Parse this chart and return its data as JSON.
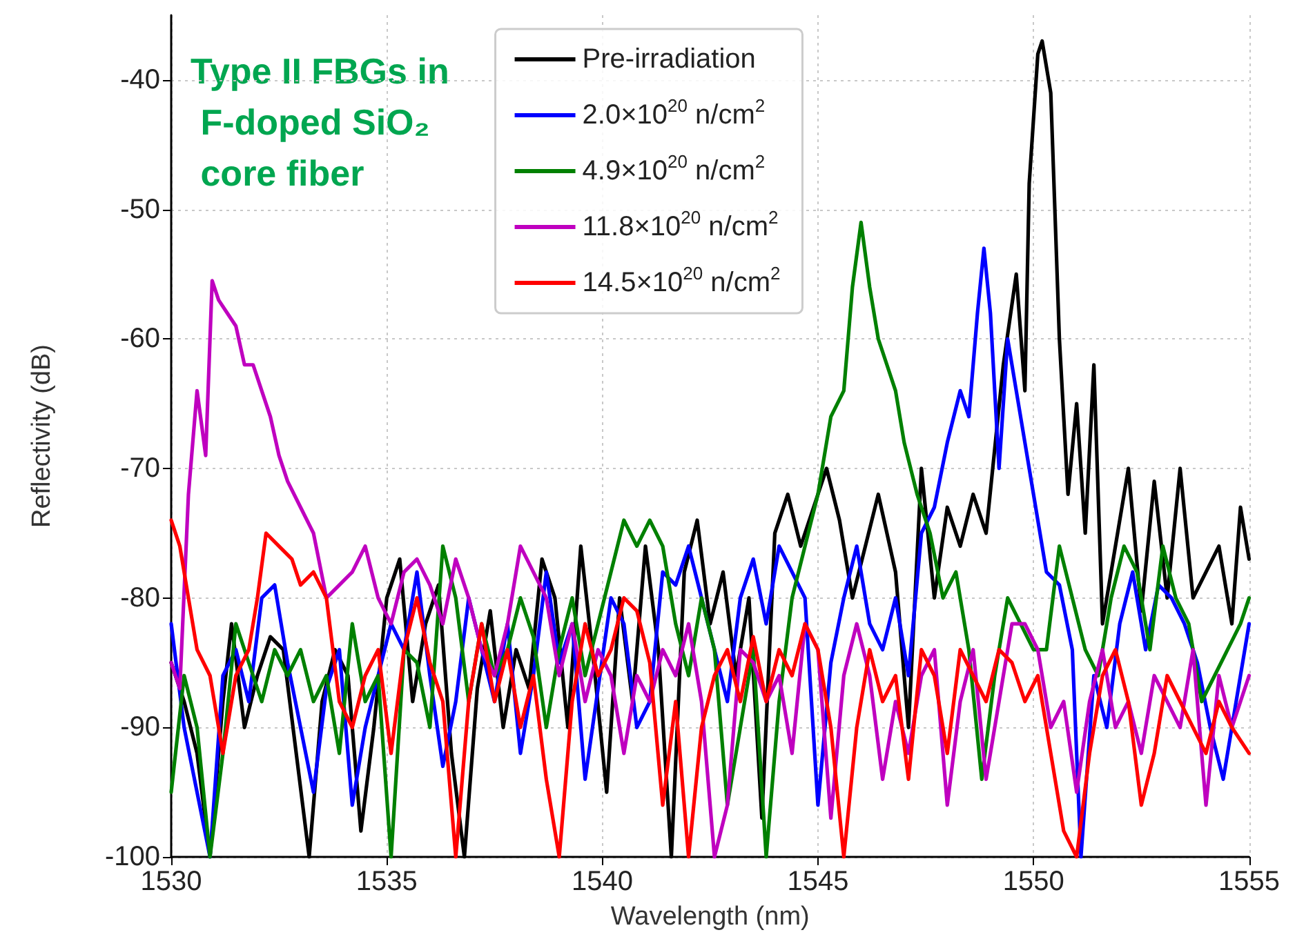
{
  "chart_data": {
    "type": "line",
    "xlabel": "Wavelength (nm)",
    "ylabel": "Reflectivity (dB)",
    "annotations": [
      "Type II FBGs in F-doped SiO₂ core fiber"
    ],
    "xlim": [
      1530,
      1555
    ],
    "xticks": [
      1530,
      1535,
      1540,
      1545,
      1550,
      1555
    ],
    "ylim": [
      -100,
      -35
    ],
    "yticks": [
      -100,
      -90,
      -80,
      -70,
      -60,
      -50,
      -40
    ],
    "grid": true,
    "legend": "top",
    "marker": "none",
    "line_style": "solid",
    "series": [
      {
        "name": "Pre-irradiation",
        "color": "#000000",
        "x": [
          1530,
          1530.3,
          1530.6,
          1530.9,
          1531.2,
          1531.4,
          1531.7,
          1532,
          1532.3,
          1532.6,
          1532.9,
          1533.2,
          1533.5,
          1533.8,
          1534.1,
          1534.4,
          1534.7,
          1535,
          1535.3,
          1535.6,
          1535.9,
          1536.2,
          1536.5,
          1536.8,
          1537.1,
          1537.4,
          1537.7,
          1538,
          1538.3,
          1538.6,
          1538.9,
          1539.2,
          1539.5,
          1539.8,
          1540.1,
          1540.4,
          1540.7,
          1541,
          1541.3,
          1541.6,
          1541.9,
          1542.2,
          1542.5,
          1542.8,
          1543.1,
          1543.4,
          1543.7,
          1544,
          1544.3,
          1544.6,
          1544.9,
          1545.2,
          1545.5,
          1545.8,
          1546.1,
          1546.4,
          1546.8,
          1547.1,
          1547.4,
          1547.7,
          1548,
          1548.3,
          1548.6,
          1548.9,
          1549.3,
          1549.6,
          1549.8,
          1549.9,
          1550.1,
          1550.2,
          1550.4,
          1550.6,
          1550.8,
          1551,
          1551.2,
          1551.4,
          1551.6,
          1551.9,
          1552.2,
          1552.5,
          1552.8,
          1553.1,
          1553.4,
          1553.7,
          1554,
          1554.3,
          1554.6,
          1554.8,
          1555
        ],
        "values": [
          -85,
          -88,
          -92,
          -100,
          -88,
          -82,
          -90,
          -86,
          -83,
          -84,
          -92,
          -100,
          -88,
          -84,
          -86,
          -98,
          -90,
          -80,
          -77,
          -88,
          -82,
          -79,
          -92,
          -100,
          -87,
          -81,
          -90,
          -84,
          -87,
          -77,
          -80,
          -90,
          -76,
          -85,
          -95,
          -80,
          -88,
          -76,
          -84,
          -100,
          -78,
          -74,
          -82,
          -78,
          -86,
          -80,
          -97,
          -75,
          -72,
          -76,
          -73,
          -70,
          -74,
          -80,
          -76,
          -72,
          -78,
          -90,
          -70,
          -80,
          -73,
          -76,
          -72,
          -75,
          -62,
          -55,
          -64,
          -48,
          -38,
          -37,
          -41,
          -60,
          -72,
          -65,
          -75,
          -62,
          -82,
          -76,
          -70,
          -81,
          -71,
          -80,
          -70,
          -80,
          -78,
          -76,
          -82,
          -73,
          -77
        ]
      },
      {
        "name": "2.0×10$^{20}$ n/cm$^{2}$",
        "color": "#0000ff",
        "x": [
          1530,
          1530.3,
          1530.6,
          1530.9,
          1531.2,
          1531.5,
          1531.8,
          1532.1,
          1532.4,
          1532.7,
          1533,
          1533.3,
          1533.6,
          1533.9,
          1534.2,
          1534.5,
          1534.8,
          1535.1,
          1535.4,
          1535.7,
          1536,
          1536.3,
          1536.6,
          1536.9,
          1537.2,
          1537.5,
          1537.8,
          1538.1,
          1538.4,
          1538.7,
          1539,
          1539.3,
          1539.6,
          1539.9,
          1540.2,
          1540.5,
          1540.8,
          1541.1,
          1541.4,
          1541.7,
          1542,
          1542.3,
          1542.6,
          1542.9,
          1543.2,
          1543.5,
          1543.8,
          1544.1,
          1544.4,
          1544.7,
          1545,
          1545.3,
          1545.6,
          1545.9,
          1546.2,
          1546.5,
          1546.8,
          1547.1,
          1547.4,
          1547.7,
          1548,
          1548.3,
          1548.5,
          1548.7,
          1548.85,
          1549,
          1549.2,
          1549.4,
          1549.6,
          1549.8,
          1550,
          1550.3,
          1550.6,
          1550.9,
          1551.1,
          1551.4,
          1551.7,
          1552,
          1552.3,
          1552.6,
          1552.9,
          1553.2,
          1553.5,
          1553.8,
          1554.1,
          1554.4,
          1554.7,
          1555
        ],
        "values": [
          -82,
          -90,
          -95,
          -100,
          -86,
          -84,
          -88,
          -80,
          -79,
          -85,
          -90,
          -95,
          -87,
          -84,
          -96,
          -90,
          -86,
          -82,
          -84,
          -78,
          -86,
          -93,
          -88,
          -80,
          -84,
          -88,
          -82,
          -92,
          -86,
          -78,
          -85,
          -82,
          -94,
          -87,
          -80,
          -82,
          -90,
          -88,
          -78,
          -79,
          -76,
          -80,
          -84,
          -88,
          -80,
          -77,
          -82,
          -76,
          -78,
          -80,
          -96,
          -85,
          -80,
          -76,
          -82,
          -84,
          -80,
          -86,
          -75,
          -73,
          -68,
          -64,
          -66,
          -58,
          -53,
          -58,
          -70,
          -60,
          -64,
          -68,
          -72,
          -78,
          -79,
          -84,
          -100,
          -86,
          -90,
          -82,
          -78,
          -84,
          -79,
          -80,
          -82,
          -85,
          -90,
          -94,
          -88,
          -82
        ]
      },
      {
        "name": "4.9×10$^{20}$ n/cm$^{2}$",
        "color": "#008000",
        "x": [
          1530,
          1530.3,
          1530.6,
          1530.9,
          1531.2,
          1531.5,
          1531.8,
          1532.1,
          1532.4,
          1532.7,
          1533,
          1533.3,
          1533.6,
          1533.9,
          1534.2,
          1534.5,
          1534.8,
          1535.1,
          1535.4,
          1535.7,
          1536,
          1536.3,
          1536.6,
          1536.9,
          1537.2,
          1537.5,
          1537.8,
          1538.1,
          1538.4,
          1538.7,
          1539,
          1539.3,
          1539.6,
          1539.9,
          1540.2,
          1540.5,
          1540.8,
          1541.1,
          1541.4,
          1541.7,
          1542,
          1542.3,
          1542.6,
          1542.9,
          1543.2,
          1543.5,
          1543.8,
          1544.1,
          1544.4,
          1544.7,
          1545,
          1545.3,
          1545.6,
          1545.8,
          1546,
          1546.2,
          1546.4,
          1546.6,
          1546.8,
          1547,
          1547.3,
          1547.6,
          1547.9,
          1548.2,
          1548.5,
          1548.8,
          1549.1,
          1549.4,
          1549.7,
          1550,
          1550.3,
          1550.6,
          1550.9,
          1551.2,
          1551.5,
          1551.8,
          1552.1,
          1552.4,
          1552.7,
          1553,
          1553.3,
          1553.6,
          1553.9,
          1554.2,
          1554.5,
          1554.8,
          1555
        ],
        "values": [
          -95,
          -86,
          -90,
          -100,
          -92,
          -82,
          -85,
          -88,
          -84,
          -86,
          -84,
          -88,
          -86,
          -92,
          -82,
          -88,
          -86,
          -100,
          -84,
          -85,
          -90,
          -76,
          -80,
          -88,
          -82,
          -86,
          -84,
          -80,
          -83,
          -90,
          -84,
          -80,
          -86,
          -82,
          -78,
          -74,
          -76,
          -74,
          -76,
          -82,
          -86,
          -80,
          -84,
          -96,
          -90,
          -84,
          -100,
          -88,
          -80,
          -76,
          -72,
          -66,
          -64,
          -56,
          -51,
          -56,
          -60,
          -62,
          -64,
          -68,
          -72,
          -75,
          -80,
          -78,
          -84,
          -94,
          -86,
          -80,
          -82,
          -84,
          -84,
          -76,
          -80,
          -84,
          -86,
          -80,
          -76,
          -78,
          -84,
          -76,
          -80,
          -82,
          -88,
          -86,
          -84,
          -82,
          -80
        ]
      },
      {
        "name": "11.8×10$^{20}$ n/cm$^{2}$",
        "color": "#bf00bf",
        "x": [
          1530,
          1530.2,
          1530.4,
          1530.6,
          1530.8,
          1530.95,
          1531.1,
          1531.3,
          1531.5,
          1531.7,
          1531.9,
          1532.1,
          1532.3,
          1532.5,
          1532.7,
          1533,
          1533.3,
          1533.6,
          1533.9,
          1534.2,
          1534.5,
          1534.8,
          1535.1,
          1535.4,
          1535.7,
          1536,
          1536.3,
          1536.6,
          1536.9,
          1537.2,
          1537.5,
          1537.8,
          1538.1,
          1538.4,
          1538.7,
          1539,
          1539.3,
          1539.6,
          1539.9,
          1540.2,
          1540.5,
          1540.8,
          1541.1,
          1541.4,
          1541.7,
          1542,
          1542.3,
          1542.6,
          1542.9,
          1543.2,
          1543.5,
          1543.8,
          1544.1,
          1544.4,
          1544.7,
          1545,
          1545.3,
          1545.6,
          1545.9,
          1546.2,
          1546.5,
          1546.8,
          1547.1,
          1547.4,
          1547.7,
          1548,
          1548.3,
          1548.6,
          1548.9,
          1549.2,
          1549.5,
          1549.8,
          1550.1,
          1550.4,
          1550.7,
          1551,
          1551.3,
          1551.6,
          1551.9,
          1552.2,
          1552.5,
          1552.8,
          1553.1,
          1553.4,
          1553.7,
          1554,
          1554.3,
          1554.6,
          1555
        ],
        "values": [
          -85,
          -87,
          -72,
          -64,
          -69,
          -55.5,
          -57,
          -58,
          -59,
          -62,
          -62,
          -64,
          -66,
          -69,
          -71,
          -73,
          -75,
          -80,
          -79,
          -78,
          -76,
          -80,
          -82,
          -78,
          -77,
          -79,
          -82,
          -77,
          -80,
          -84,
          -86,
          -82,
          -76,
          -78,
          -80,
          -86,
          -82,
          -88,
          -84,
          -86,
          -92,
          -86,
          -88,
          -84,
          -86,
          -82,
          -88,
          -100,
          -96,
          -84,
          -85,
          -88,
          -86,
          -92,
          -82,
          -84,
          -97,
          -86,
          -82,
          -86,
          -94,
          -88,
          -92,
          -86,
          -84,
          -96,
          -88,
          -84,
          -94,
          -88,
          -82,
          -82,
          -84,
          -90,
          -88,
          -95,
          -88,
          -84,
          -90,
          -88,
          -92,
          -86,
          -88,
          -90,
          -84,
          -96,
          -86,
          -90,
          -86
        ]
      },
      {
        "name": "14.5×10$^{20}$ n/cm$^{2}$",
        "color": "#ff0000",
        "x": [
          1530,
          1530.2,
          1530.4,
          1530.6,
          1530.9,
          1531.2,
          1531.5,
          1531.8,
          1532,
          1532.2,
          1532.5,
          1532.8,
          1533,
          1533.3,
          1533.6,
          1533.9,
          1534.2,
          1534.5,
          1534.8,
          1535.1,
          1535.4,
          1535.7,
          1536,
          1536.3,
          1536.6,
          1536.9,
          1537.2,
          1537.5,
          1537.8,
          1538.1,
          1538.4,
          1538.7,
          1539,
          1539.3,
          1539.6,
          1539.9,
          1540.2,
          1540.5,
          1540.8,
          1541.1,
          1541.4,
          1541.7,
          1542,
          1542.3,
          1542.6,
          1542.9,
          1543.2,
          1543.5,
          1543.8,
          1544.1,
          1544.4,
          1544.7,
          1545,
          1545.3,
          1545.6,
          1545.9,
          1546.2,
          1546.5,
          1546.8,
          1547.1,
          1547.4,
          1547.7,
          1548,
          1548.3,
          1548.6,
          1548.9,
          1549.2,
          1549.5,
          1549.8,
          1550.1,
          1550.4,
          1550.7,
          1551,
          1551.3,
          1551.6,
          1551.9,
          1552.2,
          1552.5,
          1552.8,
          1553.1,
          1553.4,
          1553.7,
          1554,
          1554.3,
          1554.6,
          1555
        ],
        "values": [
          -74,
          -76,
          -80,
          -84,
          -86,
          -92,
          -86,
          -84,
          -80,
          -75,
          -76,
          -77,
          -79,
          -78,
          -80,
          -88,
          -90,
          -86,
          -84,
          -92,
          -84,
          -80,
          -85,
          -88,
          -100,
          -88,
          -82,
          -88,
          -84,
          -90,
          -86,
          -94,
          -100,
          -88,
          -82,
          -86,
          -84,
          -80,
          -81,
          -85,
          -96,
          -88,
          -100,
          -90,
          -86,
          -84,
          -88,
          -83,
          -88,
          -84,
          -86,
          -82,
          -84,
          -90,
          -100,
          -90,
          -84,
          -88,
          -86,
          -94,
          -84,
          -86,
          -92,
          -84,
          -86,
          -88,
          -84,
          -85,
          -88,
          -86,
          -92,
          -98,
          -100,
          -92,
          -86,
          -84,
          -88,
          -96,
          -92,
          -86,
          -88,
          -90,
          -92,
          -88,
          -90,
          -92
        ]
      }
    ]
  }
}
